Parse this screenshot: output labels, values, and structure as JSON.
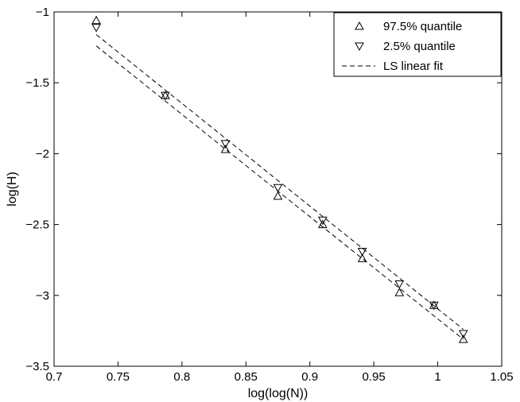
{
  "chart_data": {
    "type": "scatter",
    "xlabel": "log(log(N))",
    "ylabel": "log(H)",
    "xlim": [
      0.7,
      1.05
    ],
    "ylim": [
      -3.5,
      -1
    ],
    "xticks": [
      "0.7",
      "0.75",
      "0.8",
      "0.85",
      "0.9",
      "0.95",
      "1",
      "1.05"
    ],
    "yticks": [
      "-1",
      "-1.5",
      "-2",
      "-2.5",
      "-3",
      "-3.5"
    ],
    "grid": false,
    "legend_position": "top-right",
    "legend": [
      "97.5% quantile",
      "2.5% quantile",
      "LS linear fit"
    ],
    "series": [
      {
        "name": "97.5% quantile",
        "marker": "triangle-up",
        "x": [
          0.733,
          0.787,
          0.834,
          0.875,
          0.91,
          0.941,
          0.97,
          0.997,
          1.02
        ],
        "y": [
          -1.06,
          -1.59,
          -1.97,
          -2.3,
          -2.5,
          -2.74,
          -2.98,
          -3.07,
          -3.31
        ]
      },
      {
        "name": "2.5% quantile",
        "marker": "triangle-down",
        "x": [
          0.733,
          0.787,
          0.834,
          0.875,
          0.91,
          0.941,
          0.97,
          0.997,
          1.02
        ],
        "y": [
          -1.11,
          -1.59,
          -1.93,
          -2.24,
          -2.47,
          -2.69,
          -2.92,
          -3.07,
          -3.27
        ]
      },
      {
        "name": "LS linear fit",
        "style": "dashed",
        "lines": [
          {
            "x": [
              0.733,
              1.02
            ],
            "y": [
              -1.16,
              -3.24
            ]
          },
          {
            "x": [
              0.733,
              1.02
            ],
            "y": [
              -1.24,
              -3.31
            ]
          }
        ]
      }
    ]
  }
}
